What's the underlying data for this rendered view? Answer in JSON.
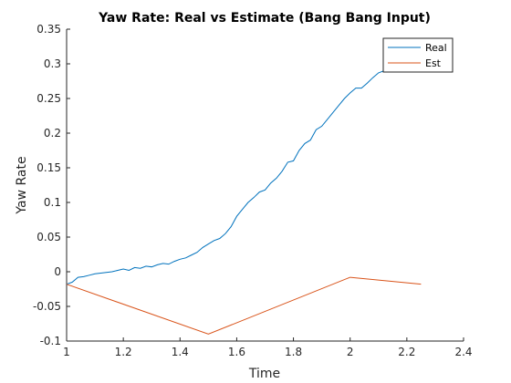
{
  "chart_data": {
    "type": "line",
    "title": "Yaw Rate: Real vs Estimate (Bang Bang Input)",
    "xlabel": "Time",
    "ylabel": "Yaw Rate",
    "xlim": [
      1,
      2.4
    ],
    "ylim": [
      -0.1,
      0.35
    ],
    "x_ticks": [
      1,
      1.2,
      1.4,
      1.6,
      1.8,
      2,
      2.2,
      2.4
    ],
    "x_tick_labels": [
      "1",
      "1.2",
      "1.4",
      "1.6",
      "1.8",
      "2",
      "2.2",
      "2.4"
    ],
    "y_ticks": [
      -0.1,
      -0.05,
      0,
      0.05,
      0.1,
      0.15,
      0.2,
      0.25,
      0.3,
      0.35
    ],
    "y_tick_labels": [
      "-0.1",
      "-0.05",
      "0",
      "0.05",
      "0.1",
      "0.15",
      "0.2",
      "0.25",
      "0.3",
      "0.35"
    ],
    "grid": false,
    "legend_position": "top-right",
    "series": [
      {
        "name": "Real",
        "color": "#0072bd",
        "x": [
          1.0,
          1.02,
          1.04,
          1.06,
          1.08,
          1.1,
          1.12,
          1.14,
          1.16,
          1.18,
          1.2,
          1.22,
          1.24,
          1.26,
          1.28,
          1.3,
          1.32,
          1.34,
          1.36,
          1.38,
          1.4,
          1.42,
          1.44,
          1.46,
          1.48,
          1.5,
          1.52,
          1.54,
          1.56,
          1.58,
          1.6,
          1.62,
          1.64,
          1.66,
          1.68,
          1.7,
          1.72,
          1.74,
          1.76,
          1.78,
          1.8,
          1.82,
          1.84,
          1.86,
          1.88,
          1.9,
          1.92,
          1.94,
          1.96,
          1.98,
          2.0,
          2.02,
          2.04,
          2.06,
          2.08,
          2.1,
          2.12,
          2.14,
          2.16,
          2.18,
          2.2,
          2.22,
          2.24
        ],
        "y": [
          -0.018,
          -0.015,
          -0.008,
          -0.007,
          -0.005,
          -0.003,
          -0.002,
          -0.001,
          0.0,
          0.002,
          0.004,
          0.002,
          0.006,
          0.005,
          0.008,
          0.007,
          0.01,
          0.012,
          0.011,
          0.015,
          0.018,
          0.02,
          0.024,
          0.028,
          0.035,
          0.04,
          0.045,
          0.048,
          0.055,
          0.065,
          0.08,
          0.09,
          0.1,
          0.107,
          0.115,
          0.118,
          0.128,
          0.135,
          0.145,
          0.158,
          0.16,
          0.175,
          0.185,
          0.19,
          0.205,
          0.21,
          0.22,
          0.23,
          0.24,
          0.25,
          0.258,
          0.265,
          0.265,
          0.272,
          0.28,
          0.287,
          0.29,
          0.296,
          0.3,
          0.305,
          0.308,
          0.312,
          0.315
        ]
      },
      {
        "name": "Est",
        "color": "#d95319",
        "x": [
          1.0,
          1.5,
          2.0,
          2.25
        ],
        "y": [
          -0.018,
          -0.09,
          -0.008,
          -0.018
        ]
      }
    ]
  }
}
